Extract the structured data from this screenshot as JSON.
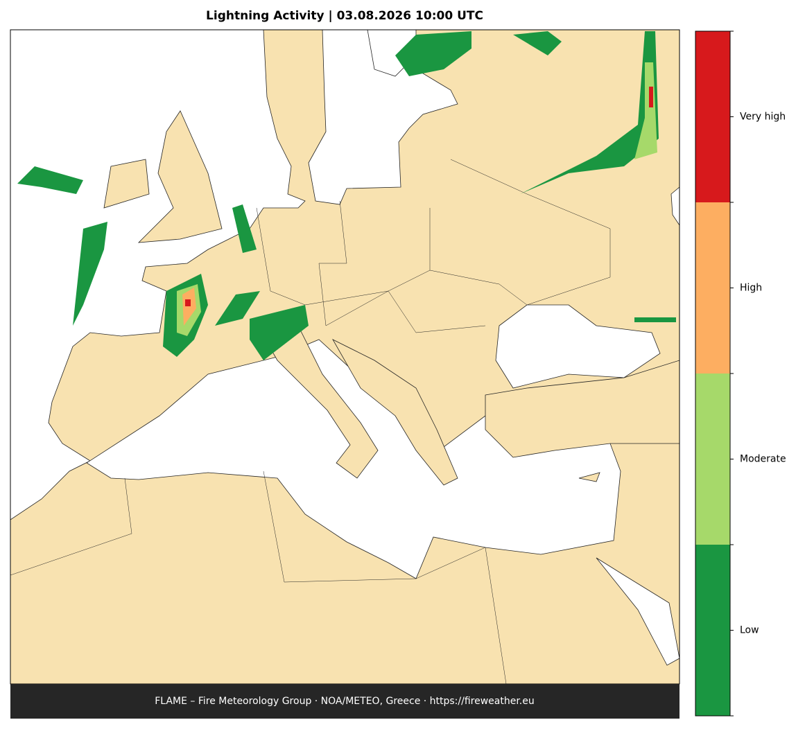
{
  "title": "Lightning Activity  |  03.08.2026 10:00 UTC",
  "colorbar": {
    "levels": [
      {
        "label": "Low",
        "color": "#1a9641"
      },
      {
        "label": "Moderate",
        "color": "#a6d96a"
      },
      {
        "label": "High",
        "color": "#fdae61"
      },
      {
        "label": "Very high",
        "color": "#d7191c"
      }
    ]
  },
  "footer": "FLAME – Fire Meteorology Group · NOA/METEO, Greece · https://fireweather.eu"
}
